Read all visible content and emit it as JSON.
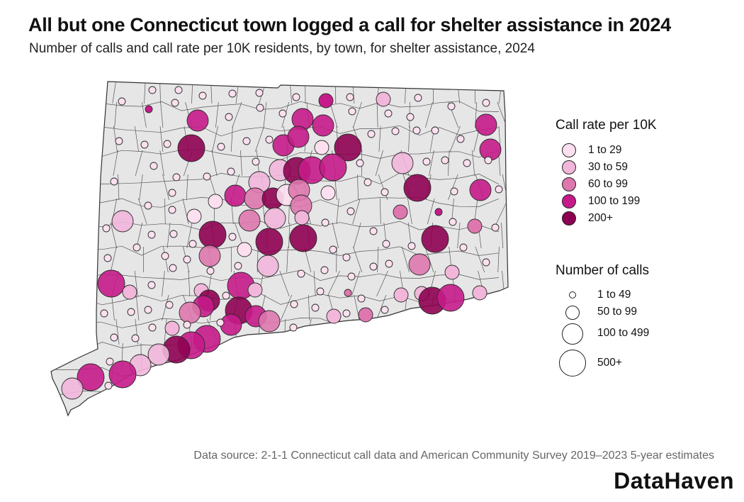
{
  "title": "All but one Connecticut town logged a call for shelter assistance in 2024",
  "subtitle": "Number of calls and call rate per 10K residents, by town, for shelter assistance, 2024",
  "source": "Data source: 2-1-1 Connecticut call data and American Community Survey 2019–2023 5-year estimates",
  "brand": "DataHaven",
  "map_style": {
    "fill": "#e6e6e6",
    "stroke": "#444444"
  },
  "legend": {
    "rate_title": "Call rate per 10K",
    "rate_classes": [
      {
        "label": "1 to 29",
        "color": "#fde0ef"
      },
      {
        "label": "30 to 59",
        "color": "#f1b6da"
      },
      {
        "label": "60 to 99",
        "color": "#de77ae"
      },
      {
        "label": "100 to 199",
        "color": "#c51b8a"
      },
      {
        "label": "200+",
        "color": "#8e0152"
      }
    ],
    "size_title": "Number of calls",
    "size_classes": [
      {
        "label": "1 to 49"
      },
      {
        "label": "50 to 99"
      },
      {
        "label": "100 to 499"
      },
      {
        "label": "500+"
      }
    ]
  },
  "town_bubbles": [
    [
      172,
      143,
      0,
      0
    ],
    [
      215,
      127,
      0,
      0
    ],
    [
      252,
      127,
      0,
      0
    ],
    [
      286,
      135,
      0,
      0
    ],
    [
      328,
      132,
      0,
      0
    ],
    [
      366,
      131,
      0,
      0
    ],
    [
      418,
      137,
      0,
      0
    ],
    [
      460,
      142,
      3,
      1
    ],
    [
      494,
      137,
      0,
      0
    ],
    [
      541,
      140,
      1,
      1
    ],
    [
      590,
      138,
      0,
      0
    ],
    [
      637,
      150,
      0,
      0
    ],
    [
      686,
      145,
      0,
      0
    ],
    [
      210,
      154,
      3,
      0
    ],
    [
      247,
      145,
      0,
      0
    ],
    [
      279,
      170,
      3,
      2
    ],
    [
      323,
      165,
      0,
      0
    ],
    [
      367,
      152,
      0,
      0
    ],
    [
      399,
      160,
      0,
      0
    ],
    [
      427,
      168,
      3,
      2
    ],
    [
      456,
      177,
      3,
      2
    ],
    [
      497,
      157,
      0,
      0
    ],
    [
      548,
      160,
      0,
      0
    ],
    [
      579,
      165,
      0,
      0
    ],
    [
      686,
      176,
      3,
      2
    ],
    [
      168,
      199,
      0,
      0
    ],
    [
      204,
      204,
      0,
      0
    ],
    [
      236,
      203,
      0,
      0
    ],
    [
      270,
      209,
      4,
      3
    ],
    [
      312,
      207,
      0,
      0
    ],
    [
      348,
      199,
      0,
      0
    ],
    [
      380,
      197,
      0,
      0
    ],
    [
      400,
      205,
      3,
      2
    ],
    [
      421,
      193,
      3,
      2
    ],
    [
      454,
      208,
      0,
      1
    ],
    [
      491,
      208,
      4,
      3
    ],
    [
      524,
      189,
      0,
      0
    ],
    [
      558,
      185,
      0,
      0
    ],
    [
      588,
      184,
      0,
      0
    ],
    [
      614,
      184,
      0,
      0
    ],
    [
      650,
      196,
      0,
      0
    ],
    [
      692,
      211,
      3,
      2
    ],
    [
      161,
      256,
      0,
      0
    ],
    [
      217,
      234,
      0,
      0
    ],
    [
      249,
      250,
      0,
      0
    ],
    [
      292,
      249,
      0,
      0
    ],
    [
      326,
      242,
      0,
      0
    ],
    [
      361,
      228,
      0,
      0
    ],
    [
      366,
      257,
      1,
      2
    ],
    [
      395,
      240,
      1,
      2
    ],
    [
      419,
      241,
      4,
      3
    ],
    [
      440,
      240,
      3,
      3
    ],
    [
      470,
      236,
      3,
      3
    ],
    [
      508,
      230,
      0,
      0
    ],
    [
      568,
      230,
      1,
      2
    ],
    [
      602,
      228,
      0,
      0
    ],
    [
      628,
      226,
      0,
      0
    ],
    [
      659,
      230,
      0,
      0
    ],
    [
      689,
      226,
      0,
      0
    ],
    [
      150,
      322,
      0,
      0
    ],
    [
      173,
      312,
      1,
      2
    ],
    [
      209,
      290,
      0,
      0
    ],
    [
      243,
      272,
      0,
      0
    ],
    [
      243,
      296,
      0,
      0
    ],
    [
      274,
      305,
      0,
      1
    ],
    [
      304,
      284,
      0,
      1
    ],
    [
      332,
      276,
      3,
      2
    ],
    [
      360,
      280,
      2,
      2
    ],
    [
      385,
      280,
      4,
      2
    ],
    [
      405,
      275,
      0,
      2
    ],
    [
      422,
      268,
      2,
      2
    ],
    [
      425,
      290,
      2,
      2
    ],
    [
      463,
      272,
      0,
      1
    ],
    [
      495,
      298,
      0,
      0
    ],
    [
      519,
      257,
      0,
      0
    ],
    [
      543,
      271,
      0,
      0
    ],
    [
      589,
      265,
      4,
      3
    ],
    [
      641,
      270,
      0,
      0
    ],
    [
      678,
      268,
      3,
      2
    ],
    [
      704,
      267,
      0,
      0
    ],
    [
      214,
      331,
      0,
      0
    ],
    [
      245,
      330,
      0,
      0
    ],
    [
      272,
      344,
      0,
      0
    ],
    [
      300,
      331,
      4,
      3
    ],
    [
      296,
      361,
      2,
      2
    ],
    [
      328,
      334,
      0,
      0
    ],
    [
      352,
      311,
      2,
      2
    ],
    [
      388,
      308,
      1,
      2
    ],
    [
      426,
      307,
      1,
      1
    ],
    [
      459,
      314,
      0,
      0
    ],
    [
      527,
      326,
      0,
      0
    ],
    [
      565,
      299,
      2,
      1
    ],
    [
      619,
      299,
      3,
      0
    ],
    [
      639,
      313,
      0,
      0
    ],
    [
      670,
      319,
      2,
      1
    ],
    [
      699,
      321,
      0,
      0
    ],
    [
      152,
      364,
      0,
      0
    ],
    [
      193,
      349,
      0,
      0
    ],
    [
      233,
      361,
      0,
      0
    ],
    [
      264,
      366,
      0,
      0
    ],
    [
      345,
      352,
      0,
      1
    ],
    [
      380,
      341,
      4,
      3
    ],
    [
      428,
      336,
      4,
      3
    ],
    [
      470,
      352,
      0,
      0
    ],
    [
      489,
      363,
      0,
      0
    ],
    [
      545,
      344,
      0,
      0
    ],
    [
      581,
      347,
      0,
      0
    ],
    [
      614,
      337,
      4,
      3
    ],
    [
      654,
      349,
      0,
      0
    ],
    [
      686,
      370,
      0,
      0
    ],
    [
      157,
      400,
      3,
      3
    ],
    [
      183,
      412,
      1,
      1
    ],
    [
      214,
      402,
      0,
      0
    ],
    [
      244,
      378,
      0,
      0
    ],
    [
      297,
      382,
      0,
      0
    ],
    [
      336,
      375,
      0,
      0
    ],
    [
      378,
      375,
      1,
      2
    ],
    [
      425,
      386,
      0,
      0
    ],
    [
      458,
      381,
      0,
      0
    ],
    [
      496,
      390,
      0,
      0
    ],
    [
      527,
      376,
      0,
      0
    ],
    [
      549,
      372,
      0,
      0
    ],
    [
      592,
      373,
      2,
      2
    ],
    [
      638,
      384,
      1,
      1
    ],
    [
      147,
      442,
      0,
      0
    ],
    [
      185,
      440,
      0,
      0
    ],
    [
      209,
      437,
      0,
      0
    ],
    [
      239,
      430,
      0,
      0
    ],
    [
      284,
      410,
      1,
      1
    ],
    [
      295,
      424,
      4,
      2
    ],
    [
      287,
      432,
      3,
      2
    ],
    [
      268,
      441,
      2,
      2
    ],
    [
      319,
      417,
      0,
      0
    ],
    [
      340,
      403,
      3,
      3
    ],
    [
      360,
      409,
      1,
      1
    ],
    [
      337,
      438,
      4,
      3
    ],
    [
      361,
      446,
      3,
      2
    ],
    [
      380,
      453,
      2,
      2
    ],
    [
      415,
      429,
      0,
      0
    ],
    [
      445,
      434,
      0,
      0
    ],
    [
      471,
      446,
      1,
      1
    ],
    [
      452,
      411,
      0,
      0
    ],
    [
      491,
      413,
      2,
      0
    ],
    [
      489,
      442,
      0,
      0
    ],
    [
      510,
      421,
      0,
      0
    ],
    [
      516,
      444,
      2,
      1
    ],
    [
      543,
      437,
      0,
      0
    ],
    [
      566,
      416,
      1,
      1
    ],
    [
      595,
      414,
      1,
      1
    ],
    [
      610,
      424,
      4,
      3
    ],
    [
      636,
      420,
      3,
      3
    ],
    [
      677,
      413,
      1,
      1
    ],
    [
      215,
      462,
      0,
      0
    ],
    [
      243,
      463,
      1,
      1
    ],
    [
      264,
      458,
      0,
      0
    ],
    [
      326,
      458,
      3,
      2
    ],
    [
      311,
      455,
      0,
      0
    ],
    [
      292,
      478,
      3,
      3
    ],
    [
      270,
      487,
      3,
      3
    ],
    [
      249,
      493,
      4,
      3
    ],
    [
      224,
      500,
      1,
      2
    ],
    [
      198,
      515,
      1,
      2
    ],
    [
      173,
      528,
      3,
      3
    ],
    [
      128,
      532,
      3,
      3
    ],
    [
      102,
      548,
      1,
      2
    ],
    [
      155,
      510,
      0,
      0
    ],
    [
      153,
      544,
      0,
      0
    ],
    [
      191,
      477,
      0,
      0
    ],
    [
      161,
      476,
      0,
      0
    ],
    [
      414,
      462,
      0,
      0
    ]
  ]
}
